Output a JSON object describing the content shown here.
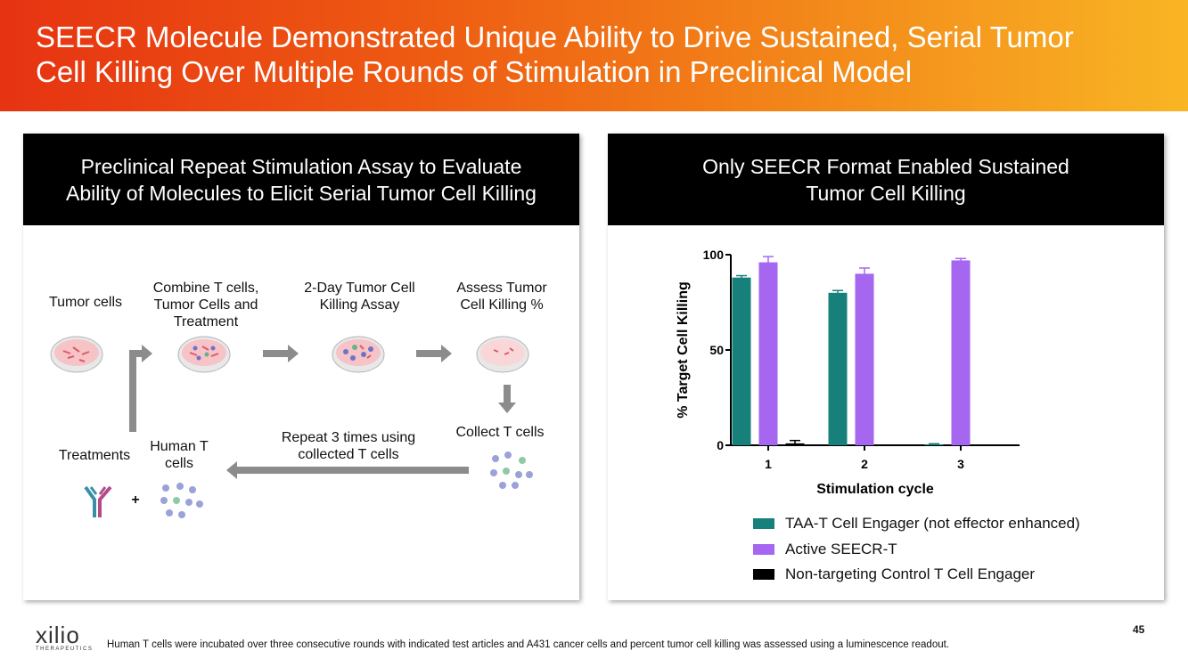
{
  "header": {
    "title_line1": "SEECR Molecule Demonstrated Unique Ability to Drive Sustained, Serial Tumor",
    "title_line2": "Cell Killing Over Multiple Rounds of Stimulation in Preclinical Model"
  },
  "left_panel": {
    "heading_line1": "Preclinical Repeat Stimulation Assay to Evaluate",
    "heading_line2": "Ability of Molecules to Elicit Serial Tumor Cell Killing",
    "steps": {
      "tumor_cells": "Tumor cells",
      "combine_1": "Combine T cells,",
      "combine_2": "Tumor Cells and",
      "combine_3": "Treatment",
      "assay_1": "2-Day Tumor Cell",
      "assay_2": "Killing Assay",
      "assess_1": "Assess Tumor",
      "assess_2": "Cell Killing %",
      "collect": "Collect T cells",
      "repeat_1": "Repeat 3 times using",
      "repeat_2": "collected T cells",
      "human_1": "Human T",
      "human_2": "cells",
      "treatments": "Treatments",
      "plus": "+"
    }
  },
  "right_panel": {
    "heading_line1": "Only SEECR Format Enabled Sustained",
    "heading_line2": "Tumor Cell Killing"
  },
  "colors": {
    "taa": "#17807a",
    "seecr": "#a566f0",
    "control": "#000000"
  },
  "chart_data": {
    "type": "bar",
    "categories": [
      "1",
      "2",
      "3"
    ],
    "xlabel": "Stimulation cycle",
    "ylabel": "% Target Cell Killing",
    "ylim": [
      0,
      100
    ],
    "yticks": [
      "0",
      "50",
      "100"
    ],
    "series": [
      {
        "name": "TAA-T Cell Engager (not effector enhanced)",
        "values": [
          88,
          80,
          0.5
        ],
        "errors": [
          1,
          1.2,
          0.3
        ]
      },
      {
        "name": "Active SEECR-T",
        "values": [
          96,
          90,
          97
        ],
        "errors": [
          3,
          3,
          1
        ]
      },
      {
        "name": "Non-targeting Control T Cell  Engager",
        "values": [
          1,
          0,
          0
        ],
        "errors": [
          1.5,
          0,
          0
        ]
      }
    ]
  },
  "footer": {
    "logo_text": "xilio",
    "logo_sub": "THERAPEUTICS",
    "note": "Human T cells were incubated over three consecutive rounds with indicated test articles and A431 cancer cells and percent tumor cell killing was assessed using a luminescence readout.",
    "page": "45"
  }
}
